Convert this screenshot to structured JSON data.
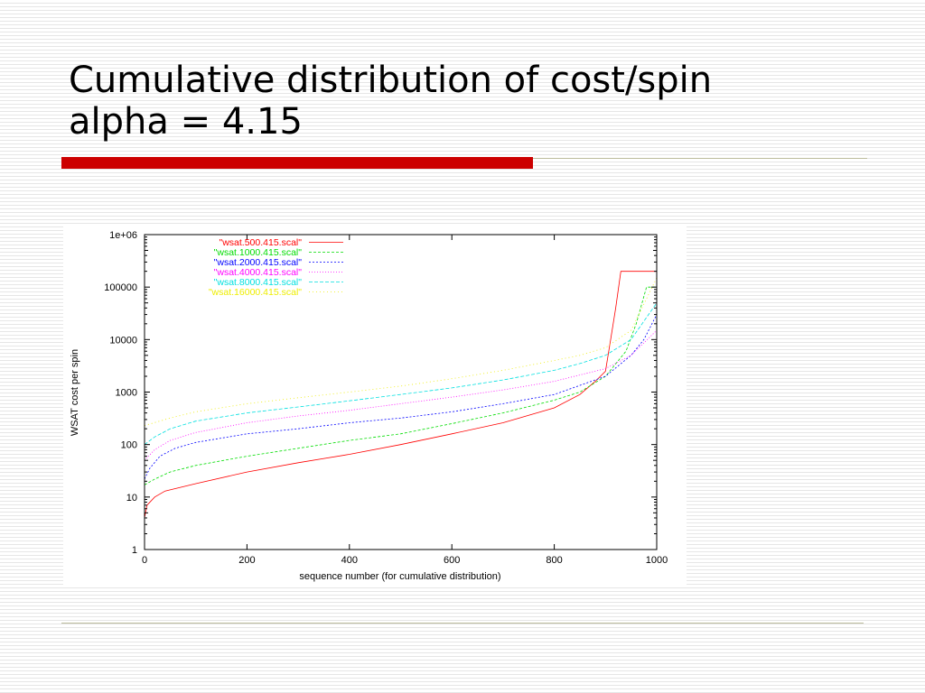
{
  "slide": {
    "title_line1": "Cumulative distribution of cost/spin",
    "title_line2": "alpha = 4.15",
    "accent_color": "#cc0000",
    "rule_color": "#bcbc9c"
  },
  "chart_data": {
    "type": "line",
    "title": "",
    "xlabel": "sequence number (for cumulative distribution)",
    "ylabel": "WSAT cost per spin",
    "xlim": [
      0,
      1000
    ],
    "ylim": [
      1,
      1000000
    ],
    "yscale": "log",
    "grid": false,
    "legend_position": "top-left",
    "x_ticks": [
      0,
      200,
      400,
      600,
      800,
      1000
    ],
    "x_tick_labels": [
      "0",
      "200",
      "400",
      "600",
      "800",
      "1000"
    ],
    "y_ticks": [
      1,
      10,
      100,
      1000,
      10000,
      100000,
      1000000
    ],
    "y_tick_labels": [
      "1",
      "10",
      "100",
      "1000",
      "10000",
      "100000",
      "1e+06"
    ],
    "series": [
      {
        "name": "\"wsat.500.415.scal\"",
        "color": "#ff0000",
        "x": [
          0,
          5,
          20,
          40,
          100,
          200,
          300,
          400,
          500,
          600,
          700,
          800,
          850,
          880,
          900,
          910,
          920,
          930,
          1000
        ],
        "y": [
          4,
          7,
          10,
          13,
          18,
          30,
          45,
          65,
          100,
          160,
          260,
          500,
          900,
          1600,
          2500,
          10000,
          40000,
          200000,
          200000
        ]
      },
      {
        "name": "\"wsat.1000.415.scal\"",
        "color": "#00dd00",
        "x": [
          0,
          20,
          50,
          100,
          200,
          300,
          400,
          500,
          600,
          700,
          800,
          850,
          900,
          940,
          960,
          980,
          1000
        ],
        "y": [
          17,
          22,
          30,
          40,
          60,
          85,
          120,
          160,
          250,
          400,
          700,
          1000,
          2000,
          6000,
          20000,
          100000,
          100000
        ]
      },
      {
        "name": "\"wsat.2000.415.scal\"",
        "color": "#0000ff",
        "x": [
          0,
          10,
          30,
          60,
          100,
          200,
          300,
          400,
          500,
          600,
          700,
          800,
          900,
          950,
          975,
          1000
        ],
        "y": [
          22,
          35,
          60,
          85,
          110,
          160,
          200,
          260,
          320,
          420,
          600,
          900,
          2000,
          5000,
          10000,
          30000
        ]
      },
      {
        "name": "\"wsat.4000.415.scal\"",
        "color": "#ff00ff",
        "x": [
          0,
          20,
          50,
          100,
          200,
          300,
          400,
          500,
          600,
          700,
          800,
          900,
          950,
          1000
        ],
        "y": [
          50,
          80,
          120,
          170,
          260,
          350,
          450,
          600,
          800,
          1100,
          1600,
          2800,
          5000,
          15000
        ]
      },
      {
        "name": "\"wsat.8000.415.scal\"",
        "color": "#00e0e0",
        "x": [
          0,
          20,
          50,
          100,
          200,
          300,
          400,
          500,
          600,
          700,
          800,
          850,
          900,
          950,
          1000
        ],
        "y": [
          100,
          140,
          200,
          280,
          400,
          520,
          680,
          900,
          1200,
          1700,
          2600,
          3500,
          5000,
          10000,
          50000
        ]
      },
      {
        "name": "\"wsat.16000.415.scal\"",
        "color": "#eeee00",
        "x": [
          0,
          50,
          100,
          200,
          300,
          400,
          500,
          600,
          700,
          800,
          850,
          900,
          950,
          1000
        ],
        "y": [
          230,
          320,
          420,
          600,
          780,
          1000,
          1300,
          1800,
          2600,
          4000,
          5000,
          7000,
          15000,
          150000
        ]
      }
    ]
  }
}
